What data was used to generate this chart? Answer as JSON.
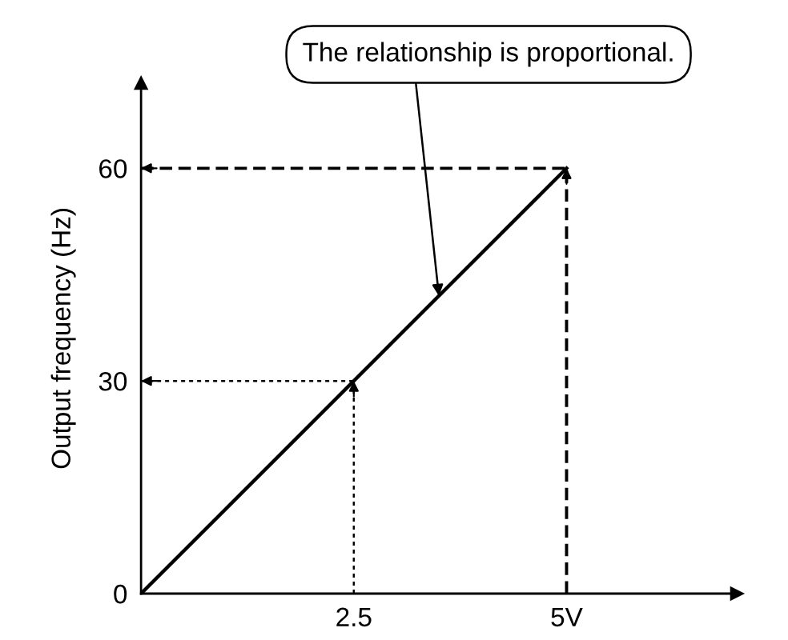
{
  "chart_data": {
    "type": "line",
    "ylabel": "Output frequency (Hz)",
    "x": [
      0,
      5
    ],
    "series": [
      {
        "color": "#000000",
        "values": [
          0,
          60
        ]
      }
    ],
    "xlim": [
      0,
      7
    ],
    "ylim": [
      0,
      72
    ],
    "xticks": [
      2.5,
      {
        "value": 5,
        "label": "5V"
      }
    ],
    "yticks": [
      0,
      30,
      60
    ],
    "ref_lines": [
      {
        "axis": "y",
        "value": 60,
        "line_style": "dashed",
        "color": "#000000"
      },
      {
        "axis": "x",
        "value": 5,
        "line_style": "dashed",
        "color": "#000000"
      },
      {
        "axis": "y",
        "value": 30,
        "line_style": "dotted",
        "color": "#000000"
      },
      {
        "axis": "x",
        "value": 2.5,
        "line_style": "dotted",
        "color": "#000000"
      }
    ],
    "annotations": [
      {
        "text": "The relationship is proportional.",
        "x": 3.5,
        "y": 42
      }
    ],
    "grid": false,
    "marker": "none",
    "line_style": "solid"
  }
}
